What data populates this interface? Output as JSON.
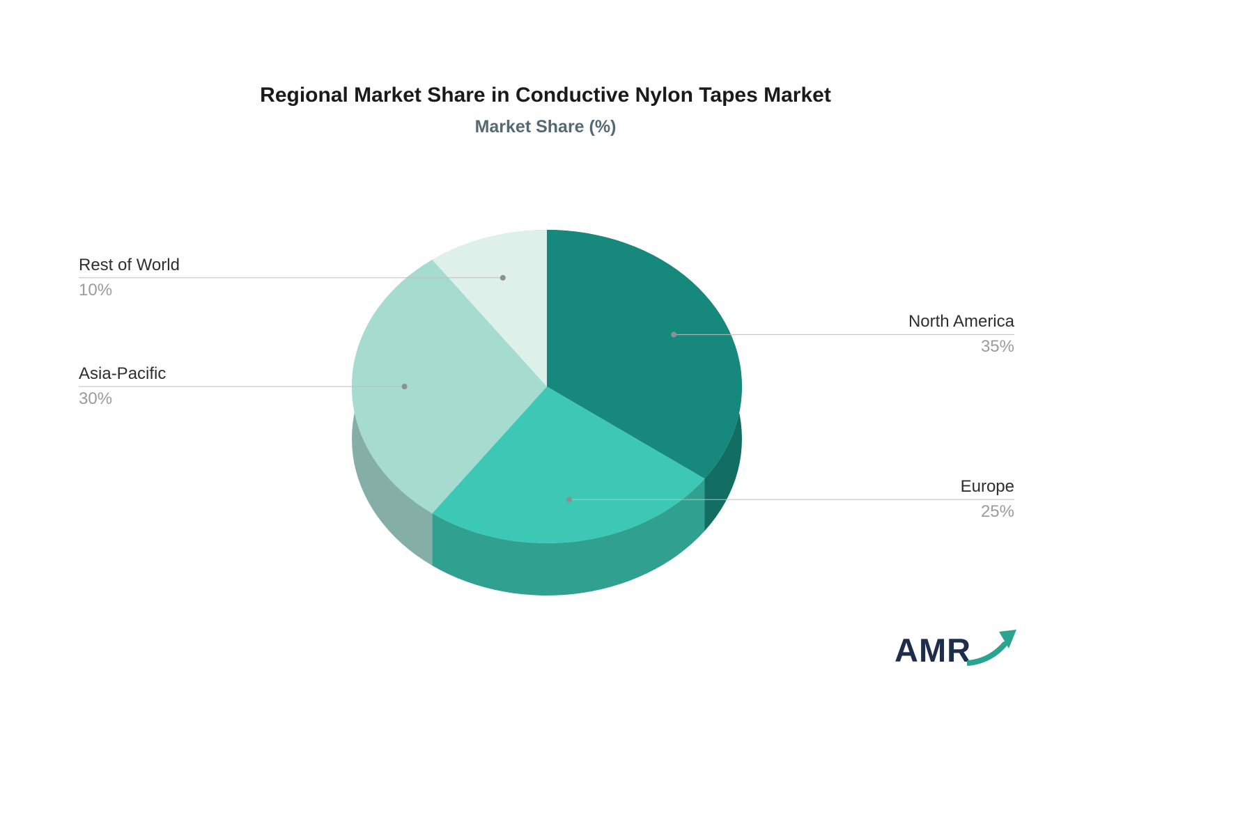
{
  "page": {
    "background": "#ffffff"
  },
  "chart_data": {
    "type": "pie",
    "style": "3d",
    "title": "Regional Market Share in Conductive Nylon Tapes Market",
    "subtitle": "Market Share (%)",
    "labels": [
      "North America",
      "Europe",
      "Asia-Pacific",
      "Rest of World"
    ],
    "values": [
      35,
      25,
      30,
      10
    ],
    "value_labels": [
      "35%",
      "25%",
      "30%",
      "10%"
    ],
    "colors": [
      "#17897c",
      "#3cc8b5",
      "#a6dbd0",
      "#def0ea"
    ],
    "start_angle_deg": 0,
    "direction": "clockwise",
    "legend_position": "none",
    "label_style": {
      "name_color": "#2e2e2e",
      "value_color": "#9b9b9b",
      "leader_line_color": "#bdbdbd",
      "leader_dot_color": "#8f8f8f"
    }
  },
  "logo": {
    "text": "AMR",
    "color": "#1e2d49",
    "arrow_color": "#2aa491",
    "arrow_icon": "trending-up-arrow"
  }
}
